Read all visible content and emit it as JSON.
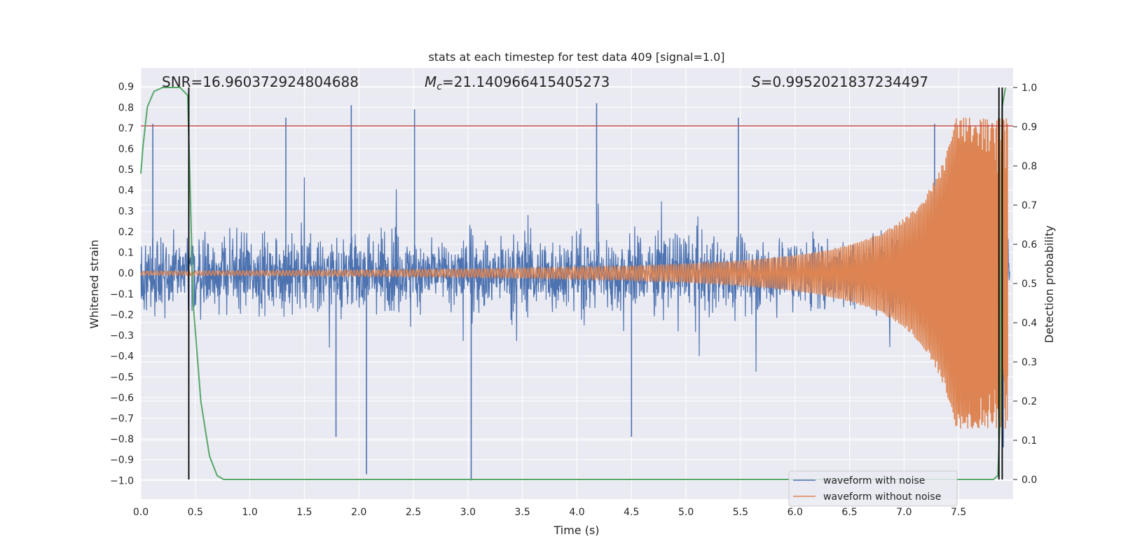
{
  "chart_data": {
    "type": "line",
    "title": "stats at each timestep for test data 409 [signal=1.0]",
    "xlabel": "Time (s)",
    "ylabel": "Whitened strain",
    "y2label": "Detection probability",
    "xlim": [
      0.0,
      8.0
    ],
    "ylim": [
      -1.09,
      0.99
    ],
    "y2lim": [
      -0.05,
      1.05
    ],
    "x_ticks": [
      "0.0",
      "0.5",
      "1.0",
      "1.5",
      "2.0",
      "2.5",
      "3.0",
      "3.5",
      "4.0",
      "4.5",
      "5.0",
      "5.5",
      "6.0",
      "6.5",
      "7.0",
      "7.5"
    ],
    "y_ticks": [
      "0.9",
      "0.8",
      "0.7",
      "0.6",
      "0.5",
      "0.4",
      "0.3",
      "0.2",
      "0.1",
      "0.0",
      "−0.1",
      "−0.2",
      "−0.3",
      "−0.4",
      "−0.5",
      "−0.6",
      "−0.7",
      "−0.8",
      "−0.9",
      "−1.0"
    ],
    "y2_ticks": [
      "1.0",
      "0.9",
      "0.8",
      "0.7",
      "0.6",
      "0.5",
      "0.4",
      "0.3",
      "0.2",
      "0.1",
      "0.0"
    ],
    "annotations": {
      "snr": "SNR=16.960372924804688",
      "mc_symbol": "M",
      "mc_subscript": "c",
      "mc_value": "=21.140966415405273",
      "s_symbol": "S",
      "s_value": "=0.9952021837234497"
    },
    "legend": {
      "location": "lower-right",
      "entries": [
        "waveform with noise",
        "waveform without noise"
      ]
    },
    "threshold_line": {
      "y": 0.71,
      "color": "#c44e52"
    },
    "vertical_markers": [
      0.44,
      7.87,
      7.9
    ],
    "series": [
      {
        "name": "waveform with noise",
        "color": "#4c72b0",
        "description": "dense whitened strain, roughly within -0.6..0.6 with spikes",
        "peaks": [
          {
            "x": 0.11,
            "y": 0.72
          },
          {
            "x": 1.33,
            "y": 0.75
          },
          {
            "x": 1.93,
            "y": 0.81
          },
          {
            "x": 2.51,
            "y": 0.79
          },
          {
            "x": 4.18,
            "y": 0.82
          },
          {
            "x": 5.48,
            "y": 0.75
          },
          {
            "x": 7.28,
            "y": 0.72
          },
          {
            "x": 2.07,
            "y": -0.97
          },
          {
            "x": 3.03,
            "y": -1.0
          },
          {
            "x": 1.79,
            "y": -0.79
          },
          {
            "x": 4.5,
            "y": -0.79
          },
          {
            "x": 7.91,
            "y": -0.84
          }
        ]
      },
      {
        "name": "waveform without noise",
        "color": "#dd8452",
        "description": "chirp: amplitude rises from ~0.005 to ~0.75 at t≈7.95 s"
      },
      {
        "name": "detection probability",
        "color": "#55a868",
        "axis": "right",
        "x": [
          0.0,
          0.02,
          0.06,
          0.12,
          0.2,
          0.3,
          0.36,
          0.43,
          0.48,
          0.55,
          0.63,
          0.7,
          0.76,
          0.85,
          1.4,
          7.7,
          7.82,
          7.86,
          7.88,
          7.9,
          7.93
        ],
        "y": [
          0.78,
          0.85,
          0.95,
          0.99,
          1.0,
          1.0,
          1.0,
          0.98,
          0.45,
          0.2,
          0.06,
          0.01,
          0.0,
          0.0,
          0.0,
          0.0,
          0.0,
          0.01,
          0.15,
          0.95,
          1.0
        ]
      }
    ]
  }
}
